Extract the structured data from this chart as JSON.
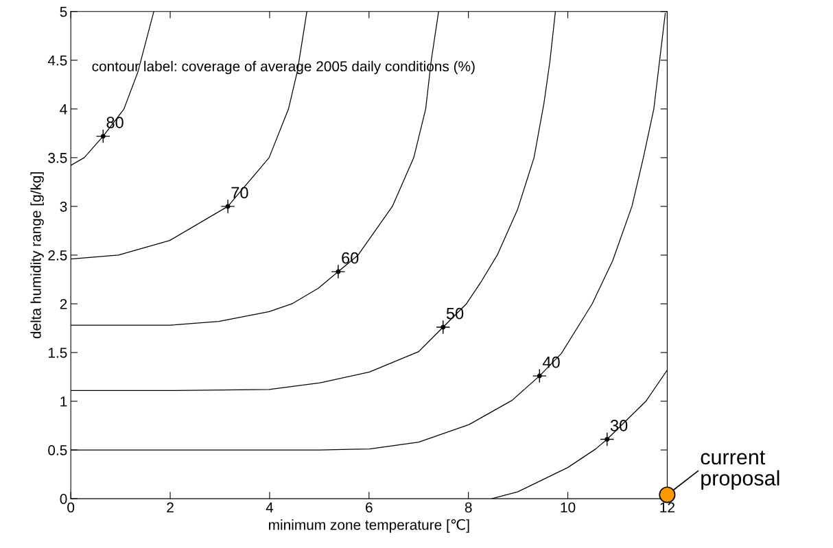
{
  "chart_data": {
    "type": "line",
    "xlabel": "minimum zone temperature [℃]",
    "ylabel": "delta humidity range [g/kg]",
    "xlim": [
      0,
      12
    ],
    "ylim": [
      0,
      5
    ],
    "xticks": [
      0,
      2,
      4,
      6,
      8,
      10,
      12
    ],
    "yticks": [
      0,
      0.5,
      1,
      1.5,
      2,
      2.5,
      3,
      3.5,
      4,
      4.5,
      5
    ],
    "grid": false,
    "legend": false,
    "marker": "none",
    "line_style": "solid",
    "series": [
      {
        "color": "#000000",
        "x": [
          0,
          0.27,
          0.65,
          1.07,
          1.35,
          1.67
        ],
        "values": [
          3.42,
          3.5,
          3.72,
          4.0,
          4.38,
          5.0
        ]
      },
      {
        "color": "#000000",
        "x": [
          0,
          0.96,
          1.99,
          3.16,
          3.99,
          4.38,
          4.56,
          4.75
        ],
        "values": [
          2.46,
          2.5,
          2.65,
          3.0,
          3.5,
          4.0,
          4.39,
          5.0
        ]
      },
      {
        "color": "#000000",
        "x": [
          0,
          1.99,
          2.98,
          3.99,
          4.45,
          4.98,
          5.38,
          5.78,
          6.47,
          6.9,
          7.14,
          7.25,
          7.4
        ],
        "values": [
          1.78,
          1.78,
          1.82,
          1.92,
          2.0,
          2.16,
          2.33,
          2.5,
          3.0,
          3.5,
          4.0,
          4.49,
          5.0
        ]
      },
      {
        "color": "#000000",
        "x": [
          0,
          1.99,
          3.99,
          5.02,
          6.01,
          7.0,
          7.49,
          7.96,
          8.26,
          8.58,
          8.99,
          9.32,
          9.52,
          9.64,
          9.75
        ],
        "values": [
          1.11,
          1.11,
          1.12,
          1.19,
          1.3,
          1.51,
          1.76,
          2.0,
          2.23,
          2.5,
          2.97,
          3.5,
          4.06,
          4.49,
          5.0
        ]
      },
      {
        "color": "#000000",
        "x": [
          0,
          5.0,
          6.01,
          7.0,
          8.01,
          8.88,
          9.43,
          9.87,
          10.49,
          10.9,
          11.29,
          11.52,
          11.73,
          11.96
        ],
        "values": [
          0.5,
          0.5,
          0.51,
          0.58,
          0.76,
          1.01,
          1.26,
          1.49,
          2.0,
          2.44,
          3.0,
          3.5,
          4.0,
          4.98
        ]
      },
      {
        "color": "#000000",
        "x": [
          8.47,
          8.99,
          10.0,
          10.56,
          10.79,
          11.57,
          12
        ],
        "values": [
          0,
          0.07,
          0.32,
          0.51,
          0.61,
          1.0,
          1.32
        ]
      },
      {
        "type": "scatter",
        "marker": "circle",
        "color": "#ff9900",
        "x": [
          12
        ],
        "values": [
          0.04
        ]
      }
    ],
    "annotations": [
      "contour label: coverage of average 2005 daily conditions (%)",
      {
        "text": "80",
        "x": 0.65,
        "y": 3.72
      },
      {
        "text": "70",
        "x": 3.16,
        "y": 3.0
      },
      {
        "text": "60",
        "x": 5.38,
        "y": 2.33
      },
      {
        "text": "50",
        "x": 7.49,
        "y": 1.76
      },
      {
        "text": "40",
        "x": 9.43,
        "y": 1.26
      },
      {
        "text": "30",
        "x": 10.79,
        "y": 0.61
      },
      {
        "text": "current proposal",
        "x": 12,
        "y": 0.04
      }
    ]
  }
}
